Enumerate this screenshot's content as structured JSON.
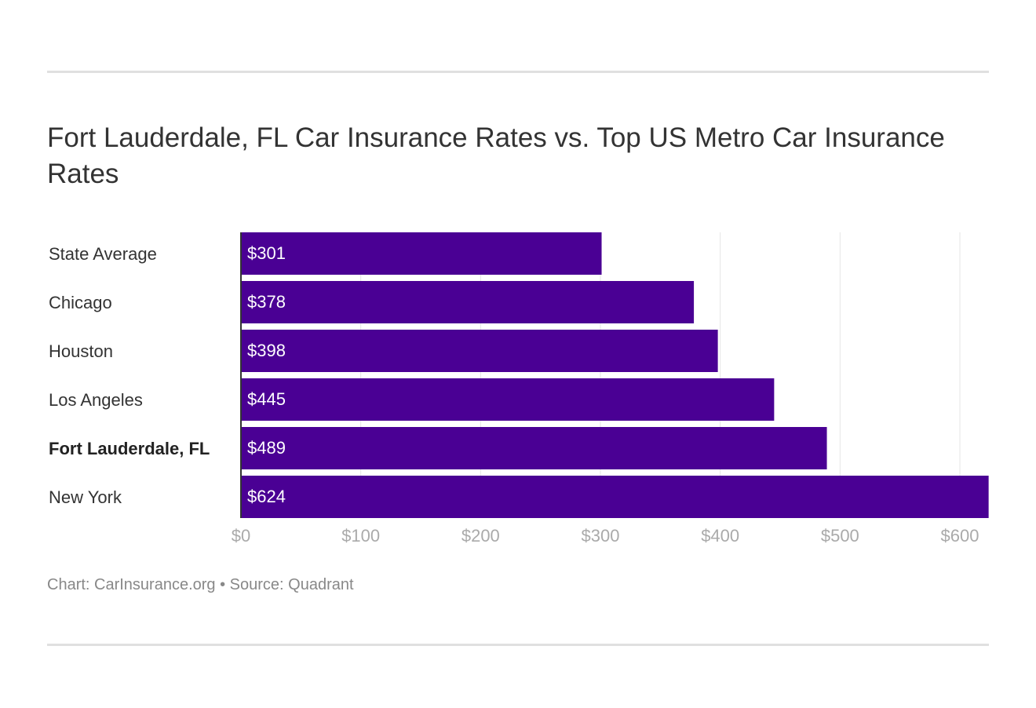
{
  "title": "Fort Lauderdale, FL Car Insurance Rates vs. Top US Metro Car Insurance Rates",
  "footer": "Chart: CarInsurance.org • Source: Quadrant",
  "chart_data": {
    "type": "bar",
    "orientation": "horizontal",
    "title": "Fort Lauderdale, FL Car Insurance Rates vs. Top US Metro Car Insurance Rates",
    "categories": [
      "State Average",
      "Chicago",
      "Houston",
      "Los Angeles",
      "Fort Lauderdale, FL",
      "New York"
    ],
    "highlighted_category": "Fort Lauderdale, FL",
    "values": [
      301,
      378,
      398,
      445,
      489,
      624
    ],
    "value_labels": [
      "$301",
      "$378",
      "$398",
      "$445",
      "$489",
      "$624"
    ],
    "xlim": [
      0,
      624
    ],
    "xticks": [
      0,
      100,
      200,
      300,
      400,
      500,
      600
    ],
    "xtick_labels": [
      "$0",
      "$100",
      "$200",
      "$300",
      "$400",
      "$500",
      "$600"
    ],
    "grid": true,
    "bar_color": "#4a0094"
  }
}
